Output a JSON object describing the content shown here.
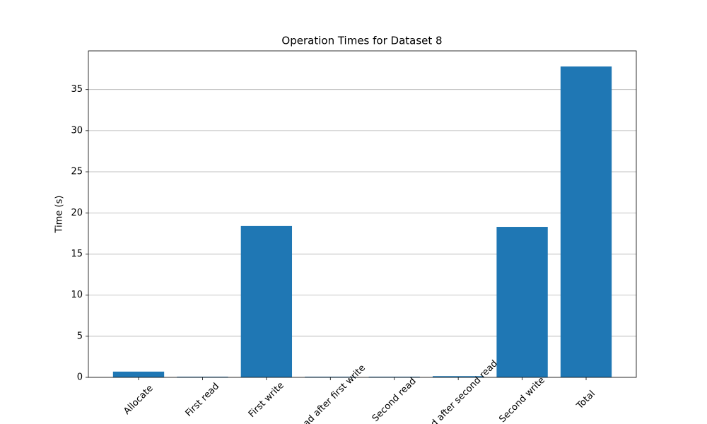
{
  "chart_data": {
    "type": "bar",
    "title": "Operation Times for Dataset 8",
    "y_label": "Time (s)",
    "categories": [
      "Allocate",
      "First read",
      "First write",
      "Read after first write",
      "Second read",
      "Read after second read",
      "Second write",
      "Total"
    ],
    "values": [
      0.7,
      0.08,
      18.4,
      0.08,
      0.08,
      0.15,
      18.3,
      37.8
    ],
    "color": "#1f77b4",
    "ylim": [
      0,
      39.7
    ],
    "yticks": [
      0,
      5,
      10,
      15,
      20,
      25,
      30,
      35
    ],
    "grid": true
  }
}
